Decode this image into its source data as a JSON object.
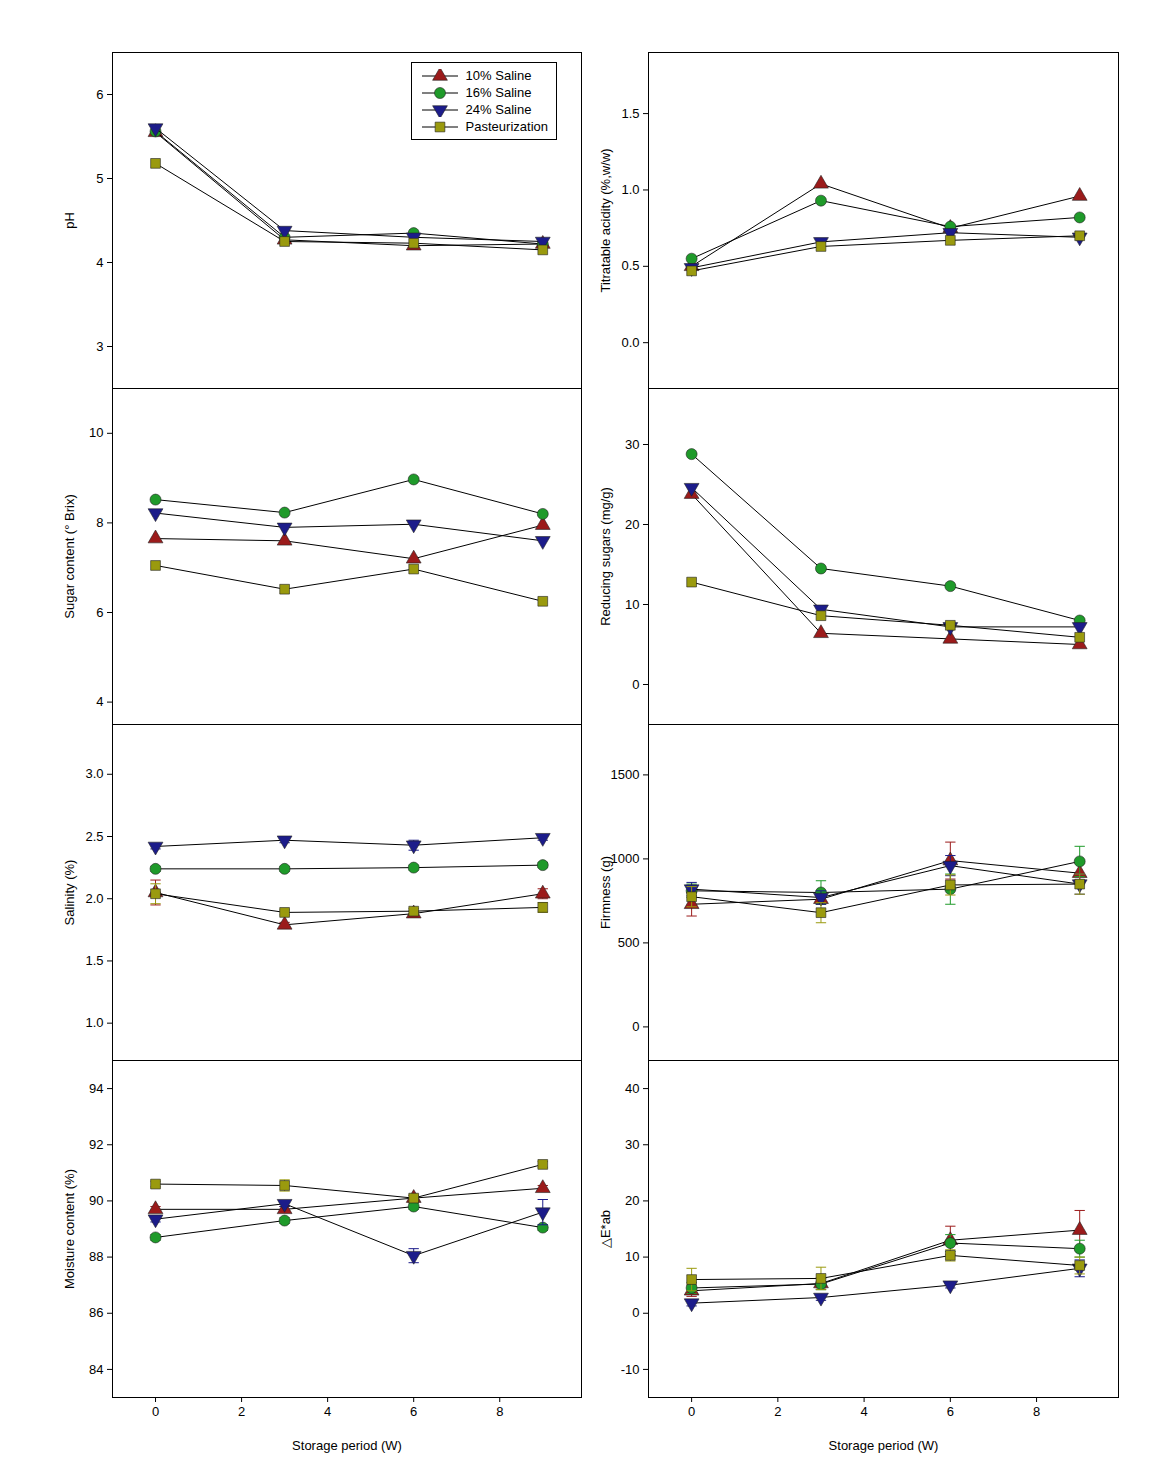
{
  "chart_data": [
    {
      "type": "line",
      "y_label": "pH",
      "x": [
        0,
        3,
        6,
        9
      ],
      "xlim": [
        -1,
        9.9
      ],
      "xticks": [
        0,
        2,
        4,
        6,
        8
      ],
      "ylim": [
        2.5,
        6.5
      ],
      "yticks": [
        3,
        4,
        5,
        6
      ],
      "tick_labels": "y",
      "legend": "upper right",
      "series": [
        {
          "name": "10% Saline",
          "color": "#9b1b1b",
          "marker": "triangle",
          "line_style": "solid",
          "values": [
            5.55,
            4.27,
            4.2,
            4.22
          ]
        },
        {
          "name": "16% Saline",
          "color": "#1f9a2a",
          "marker": "circle",
          "line_style": "solid",
          "values": [
            5.56,
            4.3,
            4.35,
            4.22
          ]
        },
        {
          "name": "24% Saline",
          "color": "#1c1c8a",
          "marker": "triangle-down",
          "line_style": "solid",
          "values": [
            5.6,
            4.38,
            4.3,
            4.25
          ]
        },
        {
          "name": "Pasteurization",
          "color": "#9a9a0e",
          "marker": "square",
          "line_style": "solid",
          "values": [
            5.18,
            4.25,
            4.23,
            4.15
          ]
        }
      ]
    },
    {
      "type": "line",
      "y_label": "Titratable acidity (%,w/w)",
      "x": [
        0,
        3,
        6,
        9
      ],
      "xlim": [
        -1,
        9.9
      ],
      "xticks": [
        0,
        2,
        4,
        6,
        8
      ],
      "ylim": [
        -0.3,
        1.9
      ],
      "yticks": [
        {
          "value": 0,
          "label": "0.0"
        },
        {
          "value": 0.5,
          "label": "0.5"
        },
        {
          "value": 1,
          "label": "1.0"
        },
        {
          "value": 1.5,
          "label": "1.5"
        }
      ],
      "tick_labels": "y",
      "series": [
        {
          "name": "10% Saline",
          "color": "#9b1b1b",
          "marker": "triangle",
          "line_style": "solid",
          "values": [
            0.5,
            1.04,
            0.75,
            0.96
          ]
        },
        {
          "name": "16% Saline",
          "color": "#1f9a2a",
          "marker": "circle",
          "line_style": "solid",
          "values": [
            0.55,
            0.93,
            0.76,
            0.82
          ]
        },
        {
          "name": "24% Saline",
          "color": "#1c1c8a",
          "marker": "triangle-down",
          "line_style": "solid",
          "values": [
            0.49,
            0.66,
            0.72,
            0.69
          ]
        },
        {
          "name": "Pasteurization",
          "color": "#9a9a0e",
          "marker": "square",
          "line_style": "solid",
          "values": [
            0.47,
            0.63,
            0.67,
            0.7
          ]
        }
      ]
    },
    {
      "type": "line",
      "y_label": "Sugar content (° Brix)",
      "x": [
        0,
        3,
        6,
        9
      ],
      "xlim": [
        -1,
        9.9
      ],
      "xticks": [
        0,
        2,
        4,
        6,
        8
      ],
      "ylim": [
        3.5,
        11
      ],
      "yticks": [
        4,
        6,
        8,
        10
      ],
      "tick_labels": "y",
      "series": [
        {
          "name": "10% Saline",
          "color": "#9b1b1b",
          "marker": "triangle",
          "line_style": "solid",
          "values": [
            7.65,
            7.6,
            7.2,
            7.95
          ]
        },
        {
          "name": "16% Saline",
          "color": "#1f9a2a",
          "marker": "circle",
          "line_style": "solid",
          "values": [
            8.52,
            8.23,
            8.97,
            8.2
          ]
        },
        {
          "name": "24% Saline",
          "color": "#1c1c8a",
          "marker": "triangle-down",
          "line_style": "solid",
          "values": [
            8.22,
            7.9,
            7.97,
            7.6
          ]
        },
        {
          "name": "Pasteurization",
          "color": "#9a9a0e",
          "marker": "square",
          "line_style": "solid",
          "values": [
            7.05,
            6.52,
            6.97,
            6.25
          ]
        }
      ]
    },
    {
      "type": "line",
      "y_label": "Reducing sugars (mg/g)",
      "x": [
        0,
        3,
        6,
        9
      ],
      "xlim": [
        -1,
        9.9
      ],
      "xticks": [
        0,
        2,
        4,
        6,
        8
      ],
      "ylim": [
        -5,
        37
      ],
      "yticks": [
        0,
        10,
        20,
        30
      ],
      "tick_labels": "y",
      "series": [
        {
          "name": "10% Saline",
          "color": "#9b1b1b",
          "marker": "triangle",
          "line_style": "solid",
          "values": [
            23.8,
            6.4,
            5.7,
            5.0
          ]
        },
        {
          "name": "16% Saline",
          "color": "#1f9a2a",
          "marker": "circle",
          "line_style": "solid",
          "values": [
            28.8,
            14.5,
            12.3,
            8.0
          ]
        },
        {
          "name": "24% Saline",
          "color": "#1c1c8a",
          "marker": "triangle-down",
          "line_style": "solid",
          "values": [
            24.6,
            9.4,
            7.2,
            7.2
          ]
        },
        {
          "name": "Pasteurization",
          "color": "#9a9a0e",
          "marker": "square",
          "line_style": "solid",
          "values": [
            12.8,
            8.6,
            7.4,
            5.9
          ]
        }
      ]
    },
    {
      "type": "line",
      "y_label": "Salinity (%)",
      "x": [
        0,
        3,
        6,
        9
      ],
      "xlim": [
        -1,
        9.9
      ],
      "xticks": [
        0,
        2,
        4,
        6,
        8
      ],
      "ylim": [
        0.7,
        3.4
      ],
      "yticks": [
        {
          "value": 1,
          "label": "1.0"
        },
        1.5,
        {
          "value": 2,
          "label": "2.0"
        },
        2.5,
        {
          "value": 3,
          "label": "3.0"
        }
      ],
      "tick_labels": "y",
      "series": [
        {
          "name": "10% Saline",
          "color": "#9b1b1b",
          "marker": "triangle",
          "line_style": "solid",
          "values": [
            2.05,
            1.79,
            1.88,
            2.04
          ],
          "errors": [
            0.1,
            0.02,
            0.02,
            0.04
          ]
        },
        {
          "name": "16% Saline",
          "color": "#1f9a2a",
          "marker": "circle",
          "line_style": "solid",
          "values": [
            2.24,
            2.24,
            2.25,
            2.27
          ],
          "errors": [
            0.02,
            0.02,
            0.02,
            0.02
          ]
        },
        {
          "name": "24% Saline",
          "color": "#1c1c8a",
          "marker": "triangle-down",
          "line_style": "solid",
          "values": [
            2.42,
            2.47,
            2.43,
            2.49
          ],
          "errors": [
            0.02,
            0.02,
            0.04,
            0.02
          ]
        },
        {
          "name": "Pasteurization",
          "color": "#9a9a0e",
          "marker": "square",
          "line_style": "solid",
          "values": [
            2.04,
            1.89,
            1.9,
            1.93
          ],
          "errors": [
            0.08,
            0.02,
            0.02,
            0.04
          ]
        }
      ]
    },
    {
      "type": "line",
      "y_label": "Firmness (g)",
      "x": [
        0,
        3,
        6,
        9
      ],
      "xlim": [
        -1,
        9.9
      ],
      "xticks": [
        0,
        2,
        4,
        6,
        8
      ],
      "ylim": [
        -200,
        1800
      ],
      "yticks": [
        0,
        500,
        1000,
        1500
      ],
      "tick_labels": "y",
      "series": [
        {
          "name": "10% Saline",
          "color": "#9b1b1b",
          "marker": "triangle",
          "line_style": "solid",
          "values": [
            730,
            760,
            990,
            915
          ],
          "errors": [
            70,
            30,
            110,
            60
          ]
        },
        {
          "name": "16% Saline",
          "color": "#1f9a2a",
          "marker": "circle",
          "line_style": "solid",
          "values": [
            810,
            800,
            820,
            985
          ],
          "errors": [
            40,
            70,
            90,
            90
          ]
        },
        {
          "name": "24% Saline",
          "color": "#1c1c8a",
          "marker": "triangle-down",
          "line_style": "solid",
          "values": [
            820,
            770,
            960,
            850
          ],
          "errors": [
            40,
            40,
            60,
            60
          ]
        },
        {
          "name": "Pasteurization",
          "color": "#9a9a0e",
          "marker": "square",
          "line_style": "solid",
          "values": [
            775,
            680,
            845,
            850
          ],
          "errors": [
            60,
            60,
            60,
            60
          ]
        }
      ]
    },
    {
      "type": "line",
      "x_label": "Storage period (W)",
      "y_label": "Moisture content (%)",
      "x": [
        0,
        3,
        6,
        9
      ],
      "xlim": [
        -1,
        9.9
      ],
      "xticks": [
        0,
        2,
        4,
        6,
        8
      ],
      "ylim": [
        83,
        95
      ],
      "yticks": [
        84,
        86,
        88,
        90,
        92,
        94
      ],
      "series": [
        {
          "name": "10% Saline",
          "color": "#9b1b1b",
          "marker": "triangle",
          "line_style": "solid",
          "values": [
            89.7,
            89.7,
            90.1,
            90.45
          ],
          "errors": [
            0.1,
            0.1,
            0.1,
            0.1
          ]
        },
        {
          "name": "16% Saline",
          "color": "#1f9a2a",
          "marker": "circle",
          "line_style": "solid",
          "values": [
            88.7,
            89.3,
            89.8,
            89.05
          ],
          "errors": [
            0.1,
            0.1,
            0.1,
            0.1
          ]
        },
        {
          "name": "24% Saline",
          "color": "#1c1c8a",
          "marker": "triangle-down",
          "line_style": "solid",
          "values": [
            89.35,
            89.9,
            88.05,
            89.6
          ],
          "errors": [
            0.1,
            0.1,
            0.25,
            0.45
          ]
        },
        {
          "name": "Pasteurization",
          "color": "#9a9a0e",
          "marker": "square",
          "line_style": "solid",
          "values": [
            90.6,
            90.55,
            90.1,
            91.3
          ],
          "errors": [
            0.1,
            0.2,
            0.1,
            0.1
          ]
        }
      ]
    },
    {
      "type": "line",
      "x_label": "Storage period (W)",
      "y_label": "△E*ab",
      "x": [
        0,
        3,
        6,
        9
      ],
      "xlim": [
        -1,
        9.9
      ],
      "xticks": [
        0,
        2,
        4,
        6,
        8
      ],
      "ylim": [
        -15,
        45
      ],
      "yticks": [
        -10,
        0,
        10,
        20,
        30,
        40
      ],
      "series": [
        {
          "name": "10% Saline",
          "color": "#9b1b1b",
          "marker": "triangle",
          "line_style": "solid",
          "values": [
            4.0,
            5.3,
            13.0,
            14.8
          ],
          "errors": [
            1,
            1,
            2.5,
            3.5
          ]
        },
        {
          "name": "16% Saline",
          "color": "#1f9a2a",
          "marker": "circle",
          "line_style": "solid",
          "values": [
            4.5,
            5.2,
            12.5,
            11.5
          ],
          "errors": [
            1,
            1,
            1.5,
            1.5
          ]
        },
        {
          "name": "24% Saline",
          "color": "#1c1c8a",
          "marker": "triangle-down",
          "line_style": "solid",
          "values": [
            1.8,
            2.8,
            5.0,
            8.0
          ],
          "errors": [
            0.5,
            0.5,
            0.5,
            1.5
          ]
        },
        {
          "name": "Pasteurization",
          "color": "#9a9a0e",
          "marker": "square",
          "line_style": "solid",
          "values": [
            6.0,
            6.2,
            10.3,
            8.5
          ],
          "errors": [
            2,
            2,
            1,
            1.5
          ]
        }
      ]
    }
  ]
}
